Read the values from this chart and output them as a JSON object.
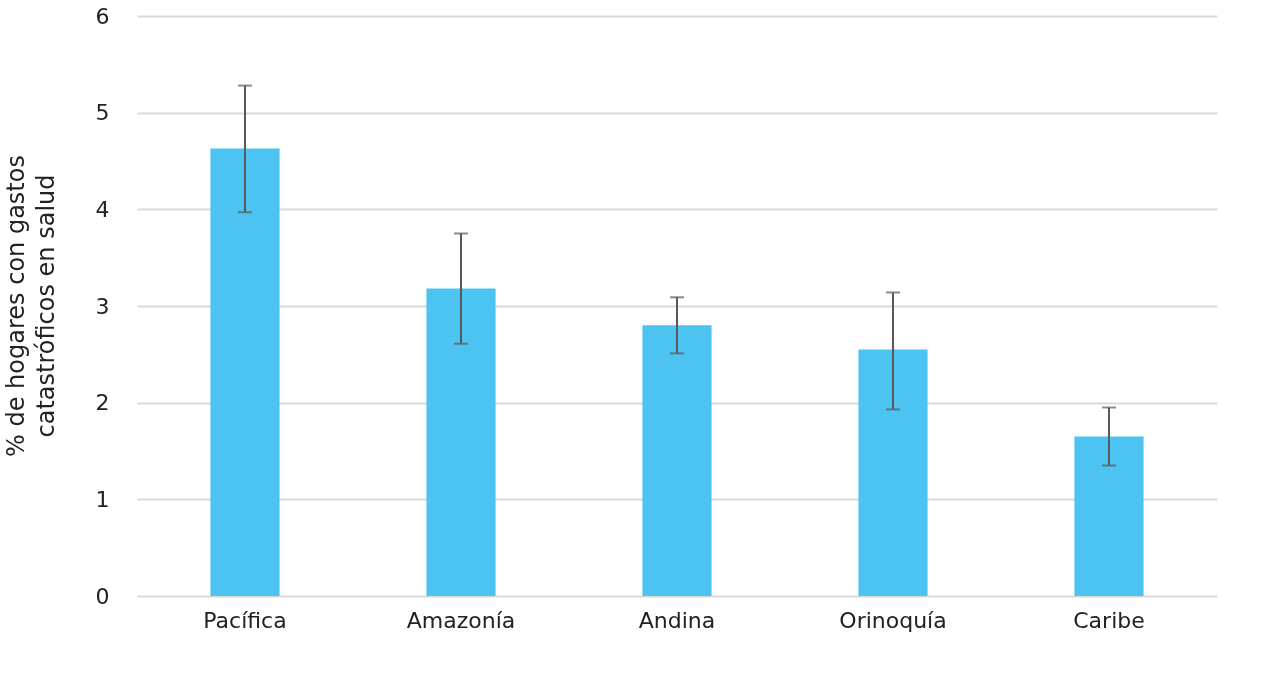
{
  "chart_data": {
    "type": "bar",
    "ylabel": "% de hogares con gastos catastróficos en salud",
    "categories": [
      "Pacífica",
      "Amazonía",
      "Andina",
      "Orinoquía",
      "Caribe"
    ],
    "values": [
      4.63,
      3.18,
      2.8,
      2.55,
      1.65
    ],
    "errors": [
      [
        3.97,
        5.28
      ],
      [
        2.61,
        3.75
      ],
      [
        2.51,
        3.09
      ],
      [
        1.93,
        3.14
      ],
      [
        1.35,
        1.95
      ]
    ],
    "color": "#4cc3f0",
    "ylim": [
      0,
      6
    ],
    "yticks": [
      0,
      1,
      2,
      3,
      4,
      5,
      6
    ],
    "grid": "y"
  }
}
